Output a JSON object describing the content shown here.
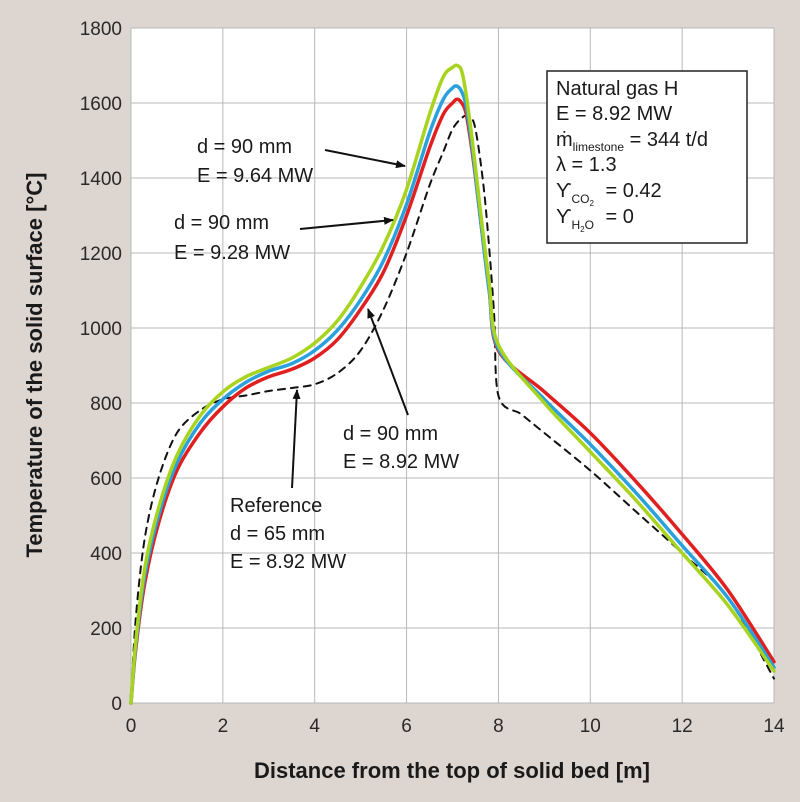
{
  "chart_data": {
    "type": "line",
    "title": "",
    "xlabel": "Distance from the top of solid bed [m]",
    "ylabel": "Temperature of the solid surface [°C]",
    "xlim": [
      0,
      14
    ],
    "ylim": [
      0,
      1800
    ],
    "xticks": [
      0,
      2,
      4,
      6,
      8,
      10,
      12,
      14
    ],
    "yticks": [
      0,
      200,
      400,
      600,
      800,
      1000,
      1200,
      1400,
      1600,
      1800
    ],
    "grid": true,
    "series": [
      {
        "name": "Reference d = 65 mm, E = 8.92 MW",
        "color": "#111111",
        "style": "dashed",
        "x": [
          0,
          0.1,
          0.3,
          0.6,
          1,
          1.5,
          2,
          2.5,
          3,
          3.5,
          4,
          4.5,
          5,
          5.5,
          6,
          6.5,
          6.8,
          7,
          7.2,
          7.35,
          7.5,
          7.7,
          7.9,
          8.0,
          8.5,
          9,
          10,
          11,
          12,
          13,
          14
        ],
        "y": [
          0,
          220,
          440,
          600,
          720,
          780,
          810,
          820,
          832,
          840,
          850,
          880,
          940,
          1050,
          1200,
          1380,
          1470,
          1530,
          1560,
          1565,
          1530,
          1350,
          1050,
          820,
          770,
          720,
          620,
          510,
          400,
          280,
          65
        ]
      },
      {
        "name": "d = 90 mm, E = 8.92 MW",
        "color": "#e02020",
        "style": "solid",
        "x": [
          0,
          0.1,
          0.3,
          0.6,
          1,
          1.5,
          2,
          2.5,
          3,
          3.5,
          4,
          4.5,
          5,
          5.5,
          6,
          6.5,
          6.8,
          7,
          7.1,
          7.2,
          7.3,
          7.45,
          7.6,
          7.8,
          8.0,
          9,
          10,
          11,
          12,
          13,
          14
        ],
        "y": [
          0,
          140,
          320,
          480,
          620,
          720,
          790,
          840,
          870,
          890,
          920,
          970,
          1050,
          1150,
          1300,
          1480,
          1570,
          1600,
          1610,
          1600,
          1570,
          1450,
          1300,
          1100,
          940,
          830,
          720,
          590,
          450,
          300,
          110
        ]
      },
      {
        "name": "d = 90 mm, E = 9.28 MW",
        "color": "#2aa0dc",
        "style": "solid",
        "x": [
          0,
          0.1,
          0.3,
          0.6,
          1,
          1.5,
          2,
          2.5,
          3,
          3.5,
          4,
          4.5,
          5,
          5.5,
          6,
          6.5,
          6.8,
          7,
          7.1,
          7.2,
          7.3,
          7.45,
          7.6,
          7.8,
          8.0,
          9,
          10,
          11,
          12,
          13,
          14
        ],
        "y": [
          0,
          150,
          340,
          500,
          640,
          745,
          810,
          855,
          885,
          905,
          940,
          995,
          1075,
          1180,
          1330,
          1520,
          1610,
          1640,
          1645,
          1630,
          1590,
          1460,
          1300,
          1100,
          945,
          810,
          690,
          560,
          420,
          280,
          95
        ]
      },
      {
        "name": "d = 90 mm, E = 9.64 MW",
        "color": "#a8d420",
        "style": "solid",
        "x": [
          0,
          0.1,
          0.3,
          0.6,
          1,
          1.5,
          2,
          2.5,
          3,
          3.5,
          4,
          4.5,
          5,
          5.5,
          6,
          6.5,
          6.8,
          7,
          7.1,
          7.2,
          7.3,
          7.45,
          7.6,
          7.8,
          8.0,
          9,
          10,
          11,
          12,
          13,
          14
        ],
        "y": [
          0,
          160,
          360,
          520,
          660,
          765,
          830,
          870,
          895,
          920,
          960,
          1020,
          1110,
          1220,
          1370,
          1570,
          1670,
          1695,
          1700,
          1685,
          1620,
          1480,
          1320,
          1120,
          955,
          800,
          670,
          540,
          400,
          260,
          85
        ]
      }
    ],
    "annotations": [
      {
        "lines": [
          "d = 90 mm",
          "E = 9.64 MW"
        ],
        "target": "green curve"
      },
      {
        "lines": [
          "d = 90 mm",
          "E = 9.28 MW"
        ],
        "target": "blue curve"
      },
      {
        "lines": [
          "d = 90 mm",
          "E = 8.92 MW"
        ],
        "target": "red curve"
      },
      {
        "lines": [
          "Reference",
          "d = 65 mm",
          "E = 8.92 MW"
        ],
        "target": "dashed curve"
      }
    ],
    "info_box": {
      "line1": "Natural gas H",
      "line2": "E = 8.92 MW",
      "mdot_sym": "ṁ",
      "mdot_sub": "limestone",
      "mdot_val": " = 344 t/d",
      "lambda": "λ = 1.3",
      "y_sym": "ϒ",
      "co2_sub": "CO",
      "co2_sub2": "2",
      "co2_val": " = 0.42",
      "h2o_sub": "H",
      "h2o_sub2": "2",
      "h2o_sub3": "O",
      "h2o_val": " = 0"
    }
  }
}
